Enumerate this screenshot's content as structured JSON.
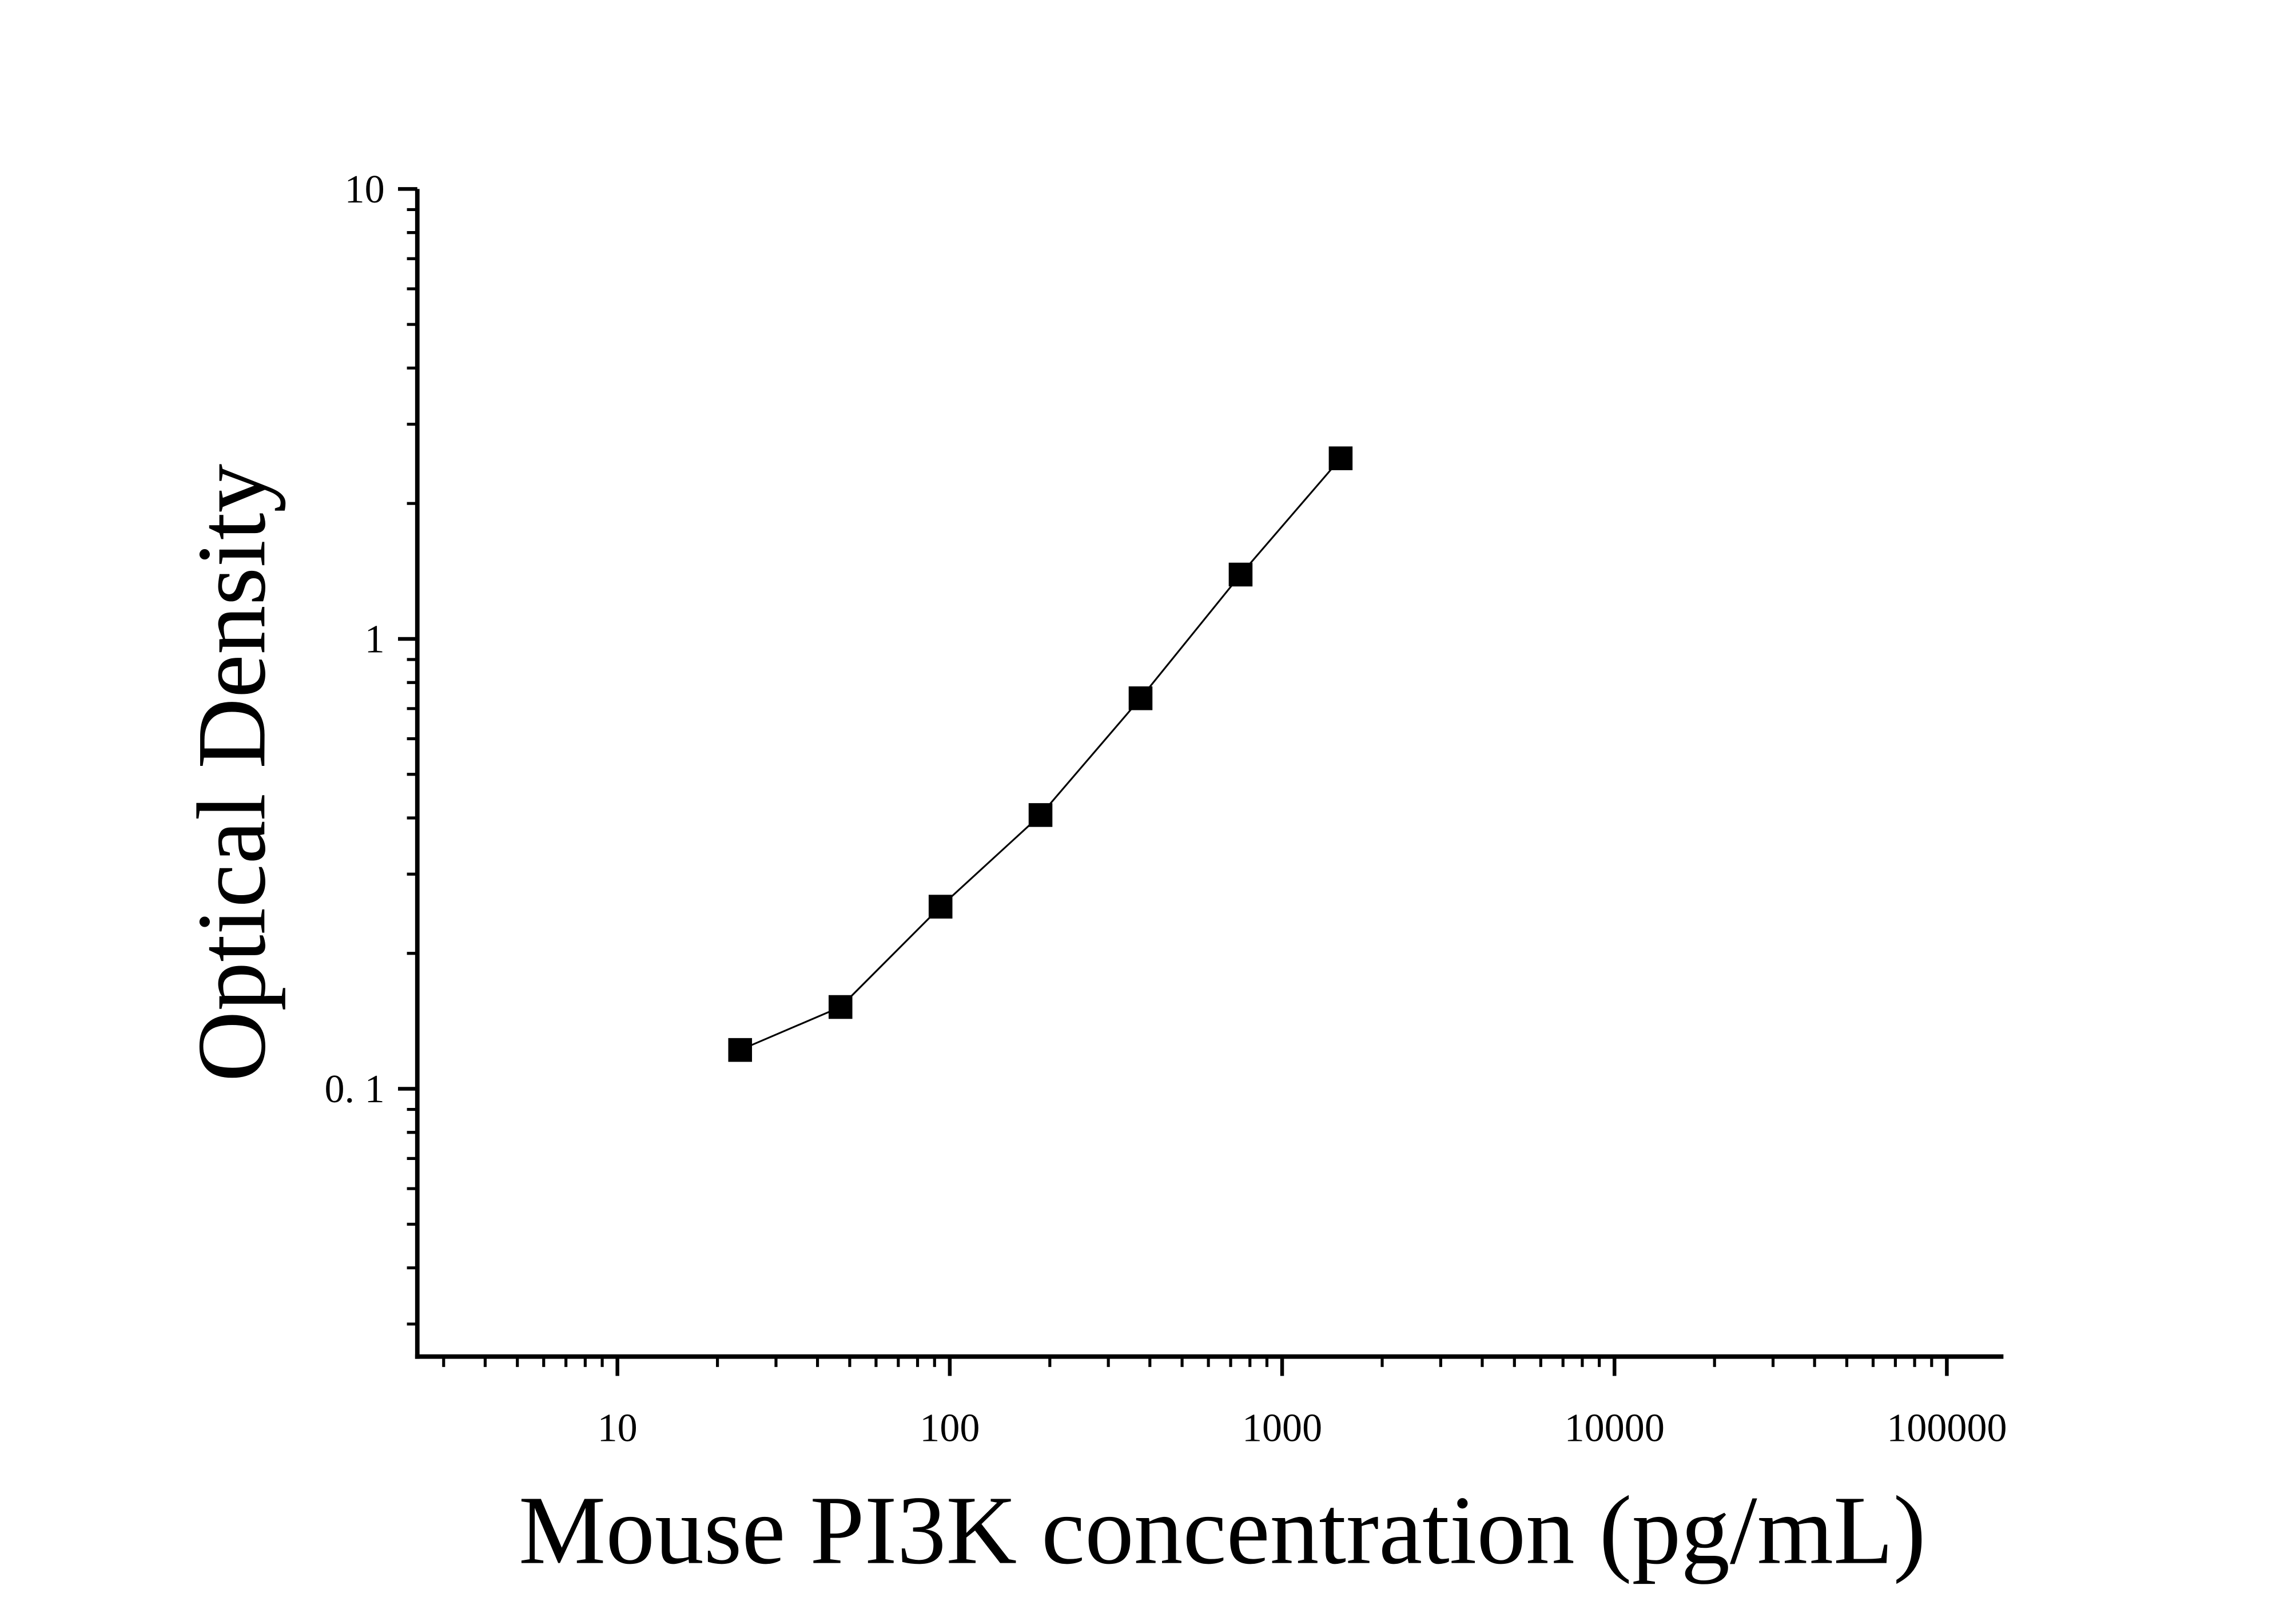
{
  "chart_data": {
    "type": "scatter",
    "x_label": "Mouse PI3K concentration (pg/mL)",
    "y_label": "Optical Density",
    "x_log": true,
    "y_log": true,
    "xlim": [
      2.5,
      148000
    ],
    "ylim": [
      0.0254,
      10
    ],
    "xticks": [
      10,
      100,
      1000,
      10000,
      100000
    ],
    "yticks": [
      {
        "value": 0.1,
        "label": "0. 1"
      },
      1,
      10
    ],
    "xminor": [
      3,
      4,
      5,
      6,
      7,
      8,
      9,
      20,
      30,
      40,
      50,
      60,
      70,
      80,
      90,
      200,
      300,
      400,
      500,
      600,
      700,
      800,
      900,
      2000,
      3000,
      4000,
      5000,
      6000,
      7000,
      8000,
      9000,
      20000,
      30000,
      40000,
      50000,
      60000,
      70000,
      80000,
      90000
    ],
    "yminor": [
      0.03,
      0.04,
      0.05,
      0.06,
      0.07,
      0.08,
      0.09,
      0.2,
      0.3,
      0.4,
      0.5,
      0.6,
      0.7,
      0.8,
      0.9,
      2,
      3,
      4,
      5,
      6,
      7,
      8,
      9
    ],
    "x": [
      23.4,
      46.9,
      93.8,
      187.5,
      375,
      750,
      1500
    ],
    "series": [
      {
        "color": "#000000",
        "values": [
          0.122,
          0.152,
          0.254,
          0.406,
          0.738,
          1.39,
          2.52
        ]
      }
    ]
  }
}
